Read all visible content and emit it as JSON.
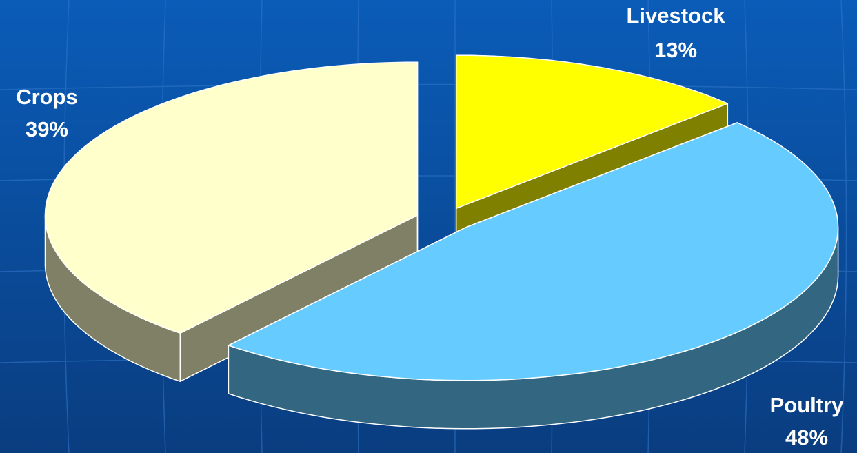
{
  "chart_data": {
    "type": "pie3d",
    "categories": [
      "Livestock",
      "Poultry",
      "Crops"
    ],
    "values": [
      13,
      48,
      39
    ],
    "value_labels": [
      "13%",
      "48%",
      "39%"
    ],
    "colors": [
      "#ffff00",
      "#66ccff",
      "#ffffcc"
    ]
  }
}
